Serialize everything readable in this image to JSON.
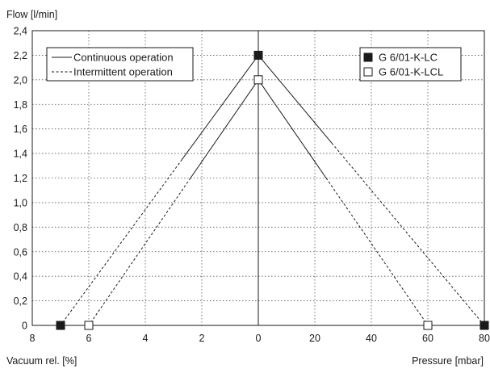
{
  "chart_data": {
    "type": "line",
    "ylabel": "Flow [l/min]",
    "xlabel_left": "Vacuum rel. [%]",
    "xlabel_right": "Pressure [mbar]",
    "yticks": [
      "0",
      "0,2",
      "0,4",
      "0,6",
      "0,8",
      "1,0",
      "1,2",
      "1,4",
      "1,6",
      "1,8",
      "2,0",
      "2,2",
      "2,4"
    ],
    "ylim": [
      0,
      2.4
    ],
    "xticks": [
      "8",
      "6",
      "4",
      "2",
      "0",
      "20",
      "40",
      "60",
      "80"
    ],
    "vacuum_range": [
      8,
      0
    ],
    "pressure_range": [
      0,
      80
    ],
    "grid": true,
    "line_legend": [
      {
        "label": "Continuous operation",
        "style": "solid"
      },
      {
        "label": "Intermittent operation",
        "style": "dashed"
      }
    ],
    "series": [
      {
        "name": "G 6/01-K-LC",
        "marker": "filled-square",
        "points": [
          {
            "side": "vacuum",
            "x": 7,
            "y": 0
          },
          {
            "side": "center",
            "x": 0,
            "y": 2.2
          },
          {
            "side": "pressure",
            "x": 80,
            "y": 0
          }
        ],
        "continuous_until": {
          "vacuum": 2.7,
          "pressure": 26
        }
      },
      {
        "name": "G 6/01-K-LCL",
        "marker": "open-square",
        "points": [
          {
            "side": "vacuum",
            "x": 6,
            "y": 0
          },
          {
            "side": "center",
            "x": 0,
            "y": 2.0
          },
          {
            "side": "pressure",
            "x": 60,
            "y": 0
          }
        ],
        "continuous_until": {
          "vacuum": 2.4,
          "pressure": 24
        }
      }
    ]
  }
}
